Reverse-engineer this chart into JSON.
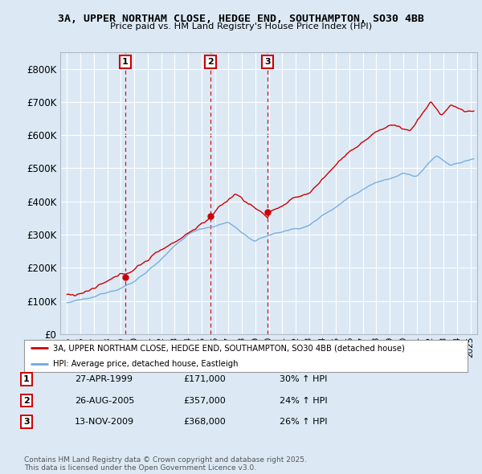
{
  "title_line1": "3A, UPPER NORTHAM CLOSE, HEDGE END, SOUTHAMPTON, SO30 4BB",
  "title_line2": "Price paid vs. HM Land Registry's House Price Index (HPI)",
  "background_color": "#dce9f5",
  "plot_bg_color": "#dce9f5",
  "sale_info": [
    {
      "label": "1",
      "date": "27-APR-1999",
      "price": "£171,000",
      "hpi": "30% ↑ HPI"
    },
    {
      "label": "2",
      "date": "26-AUG-2005",
      "price": "£357,000",
      "hpi": "24% ↑ HPI"
    },
    {
      "label": "3",
      "date": "13-NOV-2009",
      "price": "£368,000",
      "hpi": "26% ↑ HPI"
    }
  ],
  "legend_line1": "3A, UPPER NORTHAM CLOSE, HEDGE END, SOUTHAMPTON, SO30 4BB (detached house)",
  "legend_line2": "HPI: Average price, detached house, Eastleigh",
  "footer": "Contains HM Land Registry data © Crown copyright and database right 2025.\nThis data is licensed under the Open Government Licence v3.0.",
  "red_color": "#cc0000",
  "blue_color": "#6fa8dc",
  "sale_year_vals": [
    1999.33,
    2005.67,
    2009.92
  ],
  "sale_prices": [
    171000,
    357000,
    368000
  ],
  "ylim": [
    0,
    850000
  ],
  "yticks": [
    0,
    100000,
    200000,
    300000,
    400000,
    500000,
    600000,
    700000,
    800000
  ],
  "xlim_left": 1994.5,
  "xlim_right": 2025.5
}
